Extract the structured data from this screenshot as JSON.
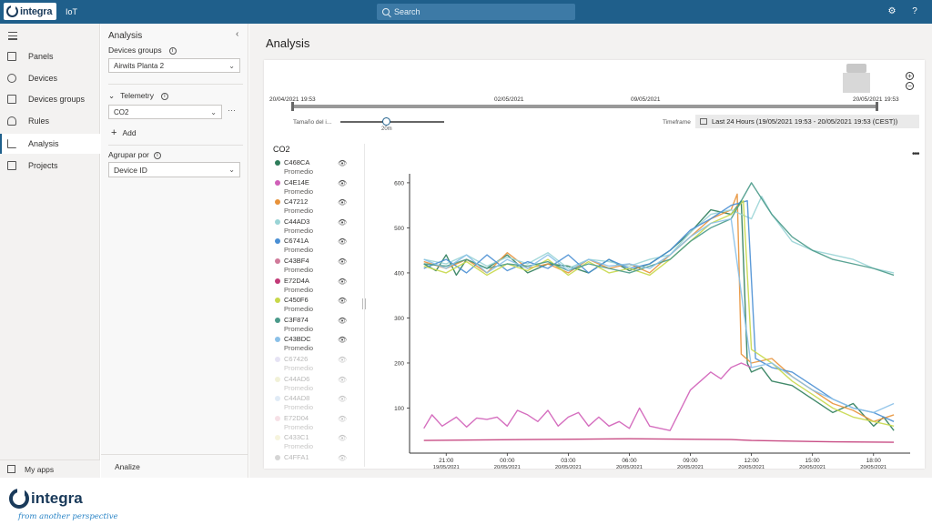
{
  "topbar": {
    "logo_text": "integra",
    "app_name": "IoT",
    "search_placeholder": "Search",
    "settings_icon": "gear-icon",
    "help_icon": "question-icon"
  },
  "nav": {
    "items": [
      {
        "label": "Panels",
        "icon": "panels-icon"
      },
      {
        "label": "Devices",
        "icon": "devices-icon"
      },
      {
        "label": "Devices groups",
        "icon": "device-groups-icon"
      },
      {
        "label": "Rules",
        "icon": "rules-icon"
      },
      {
        "label": "Analysis",
        "icon": "analysis-icon",
        "active": true
      },
      {
        "label": "Projects",
        "icon": "projects-icon"
      }
    ],
    "my_apps": "My apps"
  },
  "analysis_panel": {
    "title": "Analysis",
    "devices_groups_label": "Devices groups",
    "devices_groups_value": "Airwits Planta 2",
    "telemetry_label": "Telemetry",
    "telemetry_value": "CO2",
    "add_label": "Add",
    "group_by_label": "Agrupar por",
    "group_by_value": "Device ID",
    "analize_label": "Analize"
  },
  "main": {
    "title": "Analysis",
    "timeline": {
      "start": "20/04/2021 19:53",
      "marks": [
        "02/05/2021",
        "09/05/2021"
      ],
      "end": "20/05/2021 19:53"
    },
    "interval_label": "Tamaño del i...",
    "interval_value": "20m",
    "timeframe_label": "Timeframe",
    "timeframe_value": "Last 24 Hours (19/05/2021 19:53 - 20/05/2021 19:53 (CEST))",
    "legend_title": "CO2",
    "legend": [
      {
        "name": "C468CA",
        "sub": "Promedio",
        "color": "#2e7d5b",
        "visible": true
      },
      {
        "name": "C4E14E",
        "sub": "Promedio",
        "color": "#d05fb8",
        "visible": true
      },
      {
        "name": "C47212",
        "sub": "Promedio",
        "color": "#e8923a",
        "visible": true
      },
      {
        "name": "C44AD3",
        "sub": "Promedio",
        "color": "#9ad4d6",
        "visible": true
      },
      {
        "name": "C6741A",
        "sub": "Promedio",
        "color": "#4a8fd4",
        "visible": true
      },
      {
        "name": "C43BF4",
        "sub": "Promedio",
        "color": "#d07a9a",
        "visible": true
      },
      {
        "name": "E72D4A",
        "sub": "Promedio",
        "color": "#c23a78",
        "visible": true
      },
      {
        "name": "C450F6",
        "sub": "Promedio",
        "color": "#c8d84a",
        "visible": true
      },
      {
        "name": "C3F874",
        "sub": "Promedio",
        "color": "#4a9a8a",
        "visible": true
      },
      {
        "name": "C43BDC",
        "sub": "Promedio",
        "color": "#8ac0e8",
        "visible": true
      },
      {
        "name": "C67426",
        "sub": "Promedio",
        "color": "#b8b0e0",
        "visible": false
      },
      {
        "name": "C44AD6",
        "sub": "Promedio",
        "color": "#d8d890",
        "visible": false
      },
      {
        "name": "C44AD8",
        "sub": "Promedio",
        "color": "#a8c8e8",
        "visible": false
      },
      {
        "name": "E72D04",
        "sub": "Promedio",
        "color": "#e8a8b8",
        "visible": false
      },
      {
        "name": "C433C1",
        "sub": "Promedio",
        "color": "#e8e0a0",
        "visible": false
      },
      {
        "name": "C4FFA1",
        "sub": "",
        "color": "#888888",
        "visible": false
      }
    ]
  },
  "chart_data": {
    "type": "line",
    "ylim": [
      0,
      620
    ],
    "yticks": [
      100,
      200,
      300,
      400,
      500,
      600
    ],
    "xticks": [
      {
        "t": "21:00",
        "d": "19/05/2021"
      },
      {
        "t": "00:00",
        "d": "20/05/2021"
      },
      {
        "t": "03:00",
        "d": "20/05/2021"
      },
      {
        "t": "06:00",
        "d": "20/05/2021"
      },
      {
        "t": "09:00",
        "d": "20/05/2021"
      },
      {
        "t": "12:00",
        "d": "20/05/2021"
      },
      {
        "t": "15:00",
        "d": "20/05/2021"
      },
      {
        "t": "18:00",
        "d": "20/05/2021"
      }
    ],
    "series": [
      {
        "color": "#2e7d5b",
        "x": [
          19.9,
          20.5,
          21,
          21.5,
          22,
          23,
          24,
          25,
          26,
          27,
          28,
          29,
          30,
          31,
          32,
          33,
          34,
          35,
          35.5,
          35.8,
          36,
          36.5,
          37,
          38,
          39,
          40,
          41,
          42,
          42.5,
          43
        ],
        "y": [
          420,
          405,
          440,
          395,
          430,
          410,
          440,
          400,
          420,
          415,
          400,
          430,
          405,
          420,
          450,
          490,
          540,
          530,
          560,
          200,
          180,
          190,
          160,
          150,
          120,
          90,
          110,
          60,
          80,
          50
        ]
      },
      {
        "color": "#d05fb8",
        "x": [
          19.9,
          20.3,
          20.8,
          21.5,
          22,
          22.5,
          23,
          23.5,
          24,
          24.5,
          25,
          25.5,
          26,
          26.5,
          27,
          27.5,
          28,
          28.5,
          29,
          29.5,
          30,
          30.5,
          31,
          32,
          33,
          33.5,
          34,
          34.5,
          35,
          35.5,
          36
        ],
        "y": [
          55,
          85,
          60,
          80,
          58,
          78,
          75,
          80,
          60,
          95,
          85,
          70,
          95,
          60,
          80,
          90,
          60,
          80,
          60,
          70,
          55,
          100,
          60,
          50,
          140,
          160,
          180,
          165,
          190,
          200,
          190
        ]
      },
      {
        "color": "#e8923a",
        "x": [
          19.9,
          21,
          22,
          23,
          24,
          25,
          26,
          27,
          28,
          29,
          30,
          31,
          32,
          33,
          34,
          35,
          35.3,
          35.5,
          36,
          37,
          38,
          39,
          40,
          41,
          42,
          43
        ],
        "y": [
          425,
          410,
          430,
          400,
          445,
          410,
          420,
          400,
          430,
          410,
          420,
          400,
          440,
          480,
          520,
          540,
          575,
          220,
          200,
          210,
          170,
          140,
          110,
          95,
          70,
          85
        ]
      },
      {
        "color": "#9ad4d6",
        "x": [
          19.9,
          21,
          22,
          23,
          24,
          25,
          26,
          27,
          28,
          29,
          30,
          31,
          32,
          33,
          34,
          35,
          36,
          36.5,
          37,
          38,
          39,
          40,
          41,
          42,
          43
        ],
        "y": [
          430,
          420,
          440,
          415,
          435,
          420,
          445,
          410,
          430,
          425,
          415,
          430,
          440,
          490,
          530,
          540,
          520,
          570,
          530,
          470,
          450,
          440,
          430,
          410,
          400
        ]
      },
      {
        "color": "#4a8fd4",
        "x": [
          19.9,
          21,
          22,
          23,
          24,
          25,
          26,
          27,
          28,
          29,
          30,
          31,
          32,
          33,
          34,
          35,
          35.8,
          36.2,
          37,
          38,
          39,
          40,
          41,
          42,
          43
        ],
        "y": [
          410,
          430,
          400,
          440,
          405,
          425,
          410,
          440,
          400,
          430,
          410,
          420,
          450,
          495,
          520,
          550,
          560,
          210,
          190,
          180,
          150,
          120,
          100,
          90,
          70
        ]
      },
      {
        "color": "#c23a78",
        "x": [
          19.9,
          25,
          30,
          35,
          36,
          40,
          43
        ],
        "y": [
          28,
          30,
          32,
          30,
          28,
          25,
          24
        ]
      },
      {
        "color": "#c8d84a",
        "x": [
          19.9,
          21,
          22,
          23,
          24,
          25,
          26,
          27,
          28,
          29,
          30,
          31,
          32,
          33,
          34,
          35,
          35.6,
          36,
          37,
          38,
          39,
          40,
          41,
          42,
          43
        ],
        "y": [
          415,
          400,
          425,
          395,
          420,
          405,
          430,
          395,
          425,
          400,
          410,
          395,
          430,
          470,
          510,
          530,
          560,
          230,
          200,
          160,
          130,
          100,
          80,
          70,
          60
        ]
      },
      {
        "color": "#4a9a8a",
        "x": [
          19.9,
          21,
          22,
          23,
          24,
          25,
          26,
          27,
          28,
          29,
          30,
          31,
          32,
          33,
          34,
          35,
          36,
          37,
          38,
          39,
          40,
          41,
          42,
          43
        ],
        "y": [
          420,
          415,
          430,
          410,
          420,
          415,
          425,
          405,
          420,
          410,
          400,
          415,
          430,
          470,
          500,
          520,
          600,
          530,
          480,
          450,
          430,
          420,
          410,
          395
        ]
      },
      {
        "color": "#8ac0e8",
        "x": [
          19.9,
          21,
          22,
          23,
          24,
          25,
          26,
          27,
          28,
          29,
          30,
          31,
          32,
          33,
          34,
          35,
          36,
          37,
          38,
          39,
          40,
          41,
          42,
          43
        ],
        "y": [
          430,
          410,
          440,
          400,
          430,
          410,
          440,
          405,
          430,
          415,
          420,
          410,
          440,
          480,
          510,
          520,
          190,
          200,
          170,
          140,
          120,
          100,
          90,
          110
        ]
      }
    ]
  }
}
